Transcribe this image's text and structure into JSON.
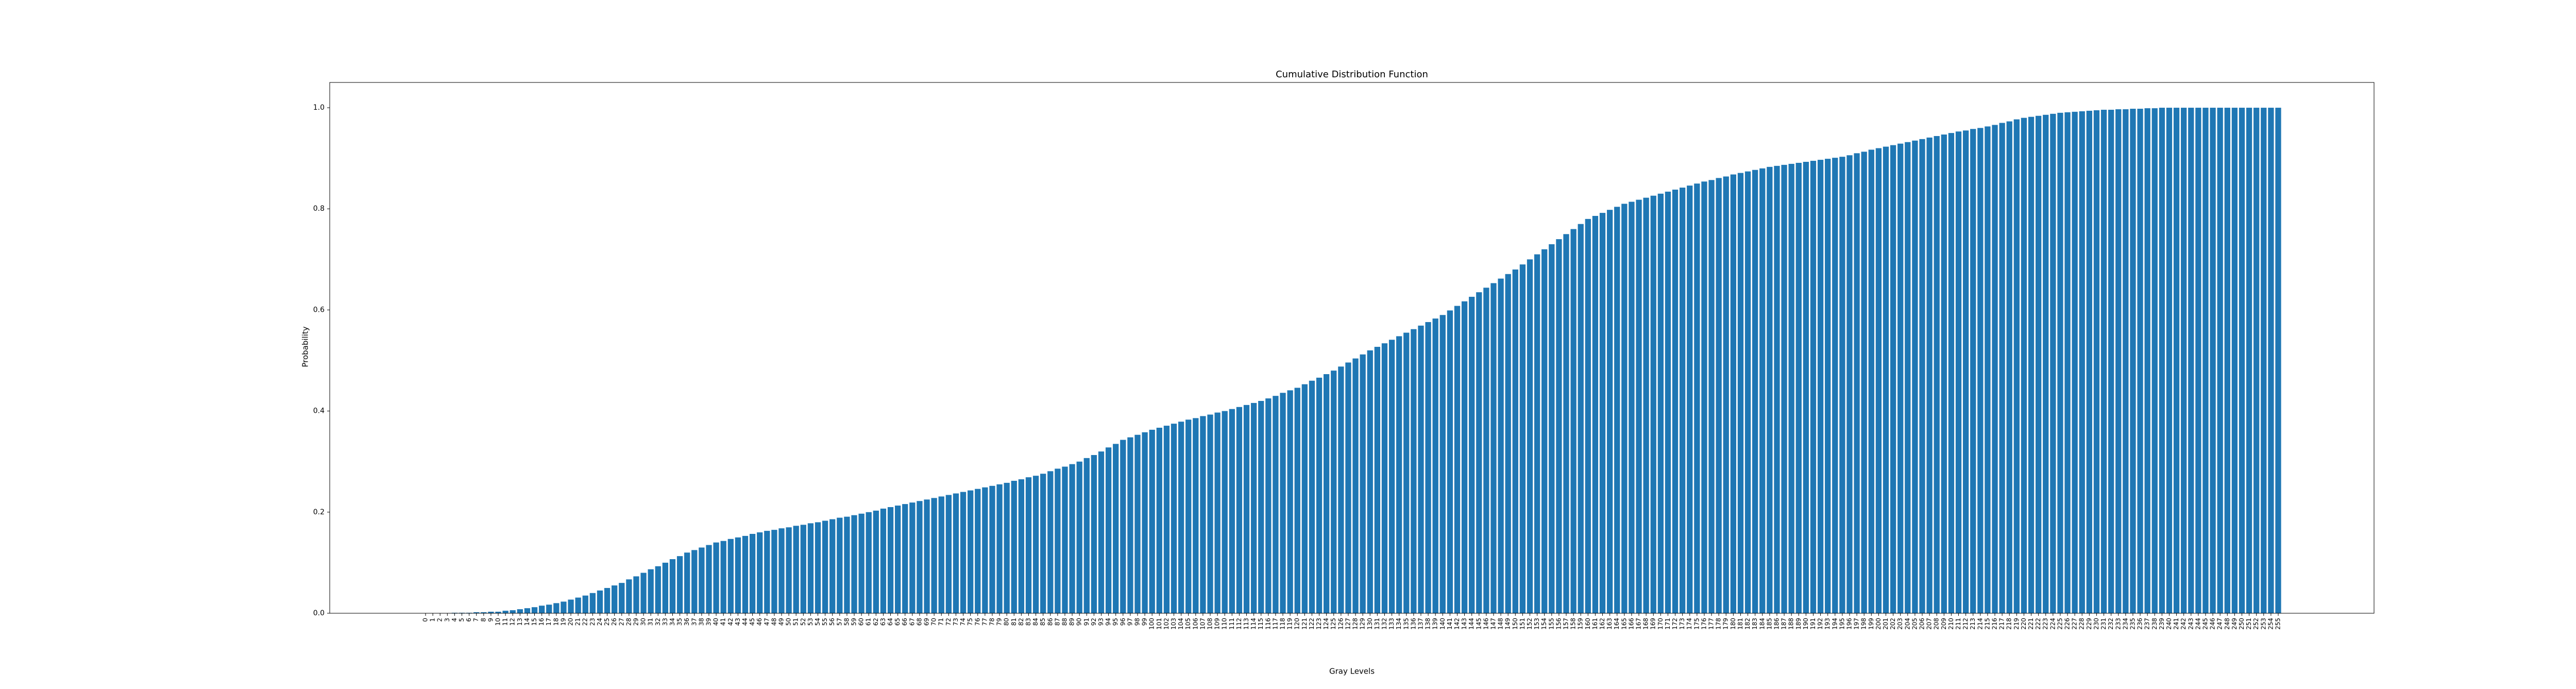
{
  "chart_data": {
    "type": "bar",
    "title": "Cumulative  Distribution Function",
    "xlabel": "Gray Levels",
    "ylabel": "Probability",
    "color": "#1f77b4",
    "categories": [
      "0",
      "1",
      "2",
      "3",
      "4",
      "5",
      "6",
      "7",
      "8",
      "9",
      "10",
      "11",
      "12",
      "13",
      "14",
      "15",
      "16",
      "17",
      "18",
      "19",
      "20",
      "21",
      "22",
      "23",
      "24",
      "25",
      "26",
      "27",
      "28",
      "29",
      "30",
      "31",
      "32",
      "33",
      "34",
      "35",
      "36",
      "37",
      "38",
      "39",
      "40",
      "41",
      "42",
      "43",
      "44",
      "45",
      "46",
      "47",
      "48",
      "49",
      "50",
      "51",
      "52",
      "53",
      "54",
      "55",
      "56",
      "57",
      "58",
      "59",
      "60",
      "61",
      "62",
      "63",
      "64",
      "65",
      "66",
      "67",
      "68",
      "69",
      "70",
      "71",
      "72",
      "73",
      "74",
      "75",
      "76",
      "77",
      "78",
      "79",
      "80",
      "81",
      "82",
      "83",
      "84",
      "85",
      "86",
      "87",
      "88",
      "89",
      "90",
      "91",
      "92",
      "93",
      "94",
      "95",
      "96",
      "97",
      "98",
      "99",
      "100",
      "101",
      "102",
      "103",
      "104",
      "105",
      "106",
      "107",
      "108",
      "109",
      "110",
      "111",
      "112",
      "113",
      "114",
      "115",
      "116",
      "117",
      "118",
      "119",
      "120",
      "121",
      "122",
      "123",
      "124",
      "125",
      "126",
      "127",
      "128",
      "129",
      "130",
      "131",
      "132",
      "133",
      "134",
      "135",
      "136",
      "137",
      "138",
      "139",
      "140",
      "141",
      "142",
      "143",
      "144",
      "145",
      "146",
      "147",
      "148",
      "149",
      "150",
      "151",
      "152",
      "153",
      "154",
      "155",
      "156",
      "157",
      "158",
      "159",
      "160",
      "161",
      "162",
      "163",
      "164",
      "165",
      "166",
      "167",
      "168",
      "169",
      "170",
      "171",
      "172",
      "173",
      "174",
      "175",
      "176",
      "177",
      "178",
      "179",
      "180",
      "181",
      "182",
      "183",
      "184",
      "185",
      "186",
      "187",
      "188",
      "189",
      "190",
      "191",
      "192",
      "193",
      "194",
      "195",
      "196",
      "197",
      "198",
      "199",
      "200",
      "201",
      "202",
      "203",
      "204",
      "205",
      "206",
      "207",
      "208",
      "209",
      "210",
      "211",
      "212",
      "213",
      "214",
      "215",
      "216",
      "217",
      "218",
      "219",
      "220",
      "221",
      "222",
      "223",
      "224",
      "225",
      "226",
      "227",
      "228",
      "229",
      "230",
      "231",
      "232",
      "233",
      "234",
      "235",
      "236",
      "237",
      "238",
      "239",
      "240",
      "241",
      "242",
      "243",
      "244",
      "245",
      "246",
      "247",
      "248",
      "249",
      "250",
      "251",
      "252",
      "253",
      "254",
      "255"
    ],
    "values": [
      0,
      0,
      0,
      0,
      0.001,
      0.001,
      0.001,
      0.002,
      0.002,
      0.003,
      0.003,
      0.005,
      0.006,
      0.008,
      0.01,
      0.012,
      0.015,
      0.017,
      0.02,
      0.023,
      0.027,
      0.031,
      0.035,
      0.04,
      0.045,
      0.05,
      0.055,
      0.06,
      0.067,
      0.073,
      0.08,
      0.087,
      0.093,
      0.1,
      0.107,
      0.113,
      0.12,
      0.125,
      0.13,
      0.135,
      0.14,
      0.143,
      0.147,
      0.15,
      0.153,
      0.157,
      0.16,
      0.163,
      0.165,
      0.168,
      0.17,
      0.173,
      0.175,
      0.178,
      0.18,
      0.183,
      0.186,
      0.189,
      0.191,
      0.194,
      0.197,
      0.2,
      0.203,
      0.207,
      0.21,
      0.213,
      0.216,
      0.219,
      0.222,
      0.225,
      0.228,
      0.231,
      0.234,
      0.237,
      0.24,
      0.243,
      0.246,
      0.249,
      0.252,
      0.255,
      0.258,
      0.262,
      0.265,
      0.269,
      0.272,
      0.276,
      0.281,
      0.286,
      0.29,
      0.295,
      0.3,
      0.307,
      0.313,
      0.32,
      0.328,
      0.335,
      0.343,
      0.348,
      0.353,
      0.358,
      0.363,
      0.367,
      0.371,
      0.375,
      0.379,
      0.383,
      0.386,
      0.39,
      0.393,
      0.397,
      0.4,
      0.404,
      0.408,
      0.412,
      0.416,
      0.42,
      0.425,
      0.43,
      0.436,
      0.441,
      0.446,
      0.453,
      0.46,
      0.466,
      0.473,
      0.48,
      0.488,
      0.496,
      0.504,
      0.512,
      0.52,
      0.527,
      0.534,
      0.541,
      0.548,
      0.555,
      0.562,
      0.569,
      0.576,
      0.583,
      0.59,
      0.599,
      0.608,
      0.617,
      0.626,
      0.635,
      0.644,
      0.653,
      0.662,
      0.671,
      0.68,
      0.69,
      0.7,
      0.71,
      0.72,
      0.73,
      0.74,
      0.75,
      0.76,
      0.77,
      0.78,
      0.786,
      0.792,
      0.798,
      0.804,
      0.81,
      0.814,
      0.818,
      0.822,
      0.826,
      0.83,
      0.834,
      0.838,
      0.842,
      0.846,
      0.85,
      0.854,
      0.857,
      0.861,
      0.864,
      0.868,
      0.871,
      0.874,
      0.877,
      0.88,
      0.883,
      0.885,
      0.887,
      0.889,
      0.891,
      0.893,
      0.895,
      0.897,
      0.899,
      0.901,
      0.903,
      0.906,
      0.91,
      0.913,
      0.917,
      0.92,
      0.923,
      0.926,
      0.929,
      0.932,
      0.935,
      0.938,
      0.941,
      0.944,
      0.947,
      0.95,
      0.953,
      0.955,
      0.958,
      0.96,
      0.963,
      0.966,
      0.97,
      0.973,
      0.977,
      0.98,
      0.982,
      0.984,
      0.986,
      0.988,
      0.99,
      0.991,
      0.992,
      0.993,
      0.994,
      0.995,
      0.996,
      0.996,
      0.997,
      0.997,
      0.998,
      0.998,
      0.999,
      0.999,
      1.0,
      1.0,
      1.0,
      1.0,
      1.0,
      1.0,
      1.0,
      1.0,
      1.0,
      1.0,
      1.0,
      1.0,
      1.0,
      1.0,
      1.0,
      1.0,
      1.0
    ],
    "xlim": [
      -13.19,
      268.19
    ],
    "ylim": [
      0,
      1.05
    ],
    "yticks": [
      {
        "value": 0,
        "label": "0.0"
      },
      0.2,
      0.4,
      0.6,
      0.8,
      {
        "value": 1,
        "label": "1.0"
      }
    ]
  }
}
